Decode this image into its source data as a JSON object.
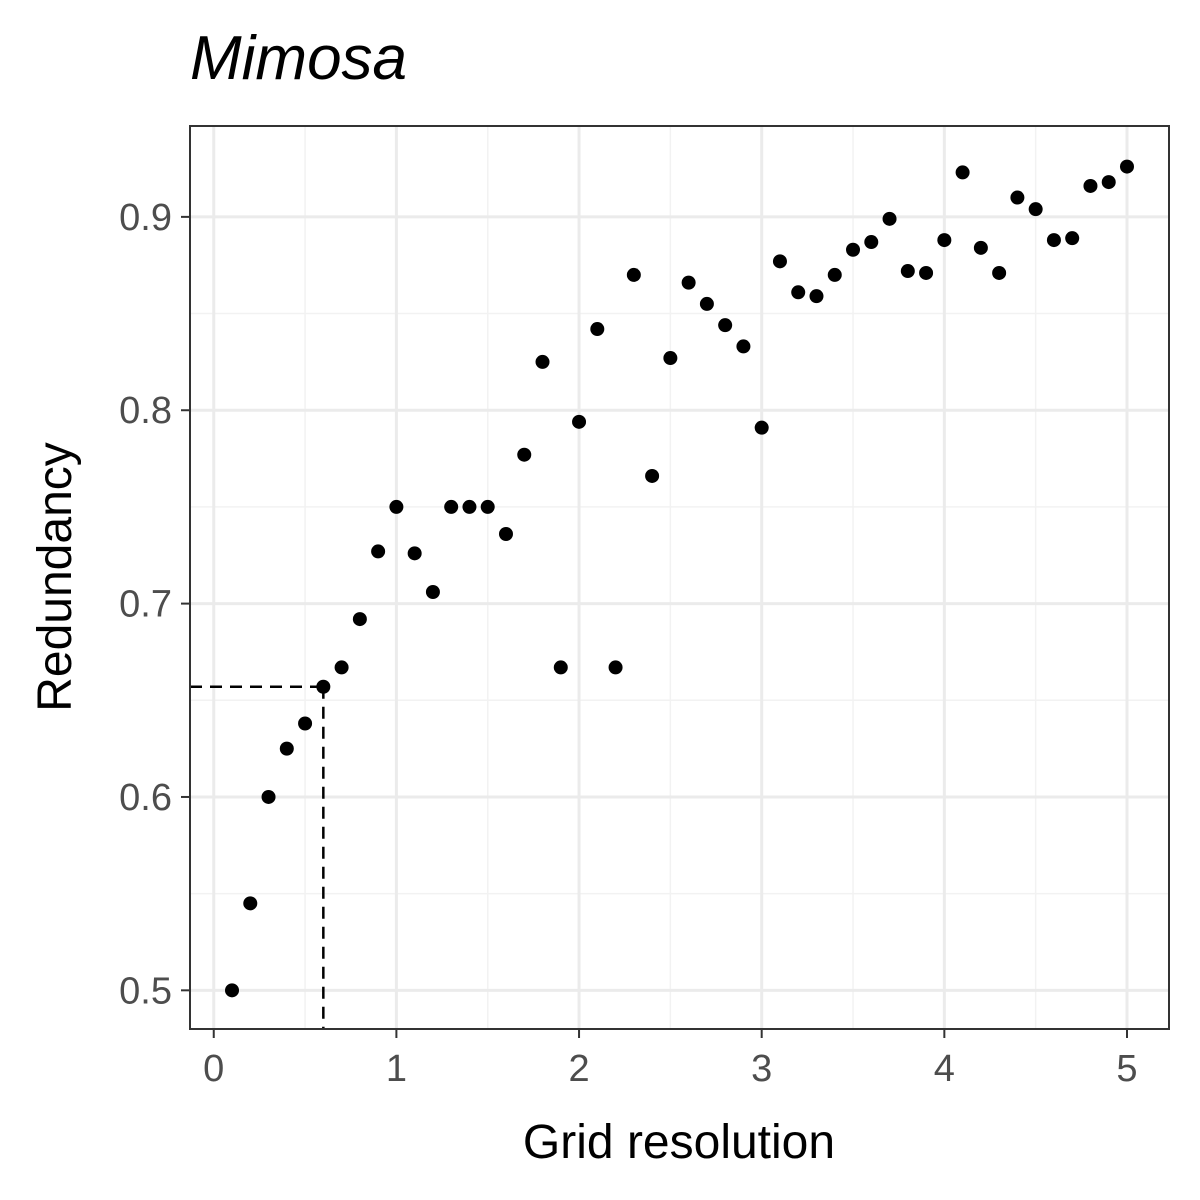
{
  "chart_data": {
    "type": "scatter",
    "title": "Mimosa",
    "xlabel": "Grid resolution",
    "ylabel": "Redundancy",
    "xlim": [
      -0.13,
      5.23
    ],
    "ylim": [
      0.48,
      0.947
    ],
    "x_ticks": [
      0,
      1,
      2,
      3,
      4,
      5
    ],
    "x_tick_labels": [
      "0",
      "1",
      "2",
      "3",
      "4",
      "5"
    ],
    "y_ticks": [
      0.5,
      0.6,
      0.7,
      0.8,
      0.9
    ],
    "y_tick_labels": [
      "0.5",
      "0.6",
      "0.7",
      "0.8",
      "0.9"
    ],
    "grid": true,
    "guide_point": {
      "x": 0.6,
      "y": 0.657
    },
    "points": [
      {
        "x": 0.1,
        "y": 0.5
      },
      {
        "x": 0.2,
        "y": 0.545
      },
      {
        "x": 0.3,
        "y": 0.6
      },
      {
        "x": 0.4,
        "y": 0.625
      },
      {
        "x": 0.5,
        "y": 0.638
      },
      {
        "x": 0.6,
        "y": 0.657
      },
      {
        "x": 0.7,
        "y": 0.667
      },
      {
        "x": 0.8,
        "y": 0.692
      },
      {
        "x": 0.9,
        "y": 0.727
      },
      {
        "x": 1.0,
        "y": 0.75
      },
      {
        "x": 1.1,
        "y": 0.726
      },
      {
        "x": 1.2,
        "y": 0.706
      },
      {
        "x": 1.3,
        "y": 0.75
      },
      {
        "x": 1.4,
        "y": 0.75
      },
      {
        "x": 1.5,
        "y": 0.75
      },
      {
        "x": 1.6,
        "y": 0.736
      },
      {
        "x": 1.7,
        "y": 0.777
      },
      {
        "x": 1.8,
        "y": 0.825
      },
      {
        "x": 1.9,
        "y": 0.667
      },
      {
        "x": 2.0,
        "y": 0.794
      },
      {
        "x": 2.1,
        "y": 0.842
      },
      {
        "x": 2.2,
        "y": 0.667
      },
      {
        "x": 2.3,
        "y": 0.87
      },
      {
        "x": 2.4,
        "y": 0.766
      },
      {
        "x": 2.5,
        "y": 0.827
      },
      {
        "x": 2.6,
        "y": 0.866
      },
      {
        "x": 2.7,
        "y": 0.855
      },
      {
        "x": 2.8,
        "y": 0.844
      },
      {
        "x": 2.9,
        "y": 0.833
      },
      {
        "x": 3.0,
        "y": 0.791
      },
      {
        "x": 3.1,
        "y": 0.877
      },
      {
        "x": 3.2,
        "y": 0.861
      },
      {
        "x": 3.3,
        "y": 0.859
      },
      {
        "x": 3.4,
        "y": 0.87
      },
      {
        "x": 3.5,
        "y": 0.883
      },
      {
        "x": 3.6,
        "y": 0.887
      },
      {
        "x": 3.7,
        "y": 0.899
      },
      {
        "x": 3.8,
        "y": 0.872
      },
      {
        "x": 3.9,
        "y": 0.871
      },
      {
        "x": 4.0,
        "y": 0.888
      },
      {
        "x": 4.1,
        "y": 0.923
      },
      {
        "x": 4.2,
        "y": 0.884
      },
      {
        "x": 4.3,
        "y": 0.871
      },
      {
        "x": 4.4,
        "y": 0.91
      },
      {
        "x": 4.5,
        "y": 0.904
      },
      {
        "x": 4.6,
        "y": 0.888
      },
      {
        "x": 4.7,
        "y": 0.889
      },
      {
        "x": 4.8,
        "y": 0.916
      },
      {
        "x": 4.9,
        "y": 0.918
      },
      {
        "x": 5.0,
        "y": 0.926
      }
    ]
  }
}
